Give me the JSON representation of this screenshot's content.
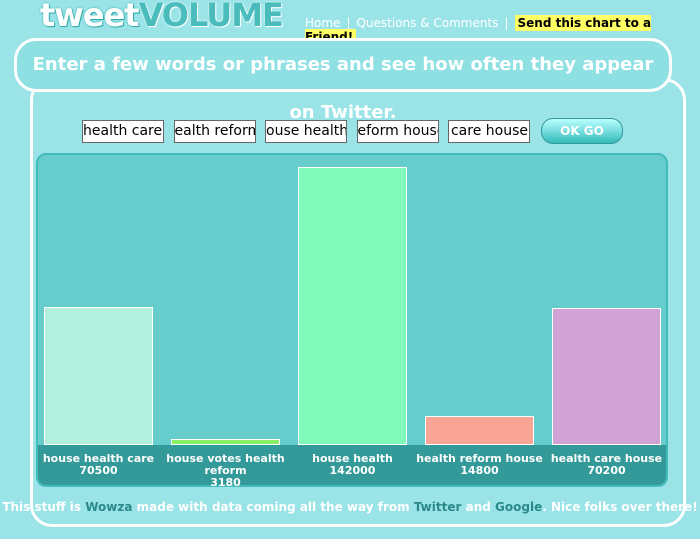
{
  "header": {
    "logo": [
      "tweet",
      "VOLUME"
    ],
    "nav": [
      "Home",
      "Questions & Comments",
      "Send this chart to a Friend!"
    ]
  },
  "banner": "Enter a few words or phrases and see how often they appear on Twitter.",
  "inputs": [
    "health care",
    "ealth reform",
    "ouse health",
    "eform house",
    "care house"
  ],
  "button": "OK GO",
  "chart_data": {
    "type": "bar",
    "categories": [
      "house health care",
      "house votes health reform",
      "house health",
      "health reform house",
      "health care house"
    ],
    "values": [
      70500,
      3180,
      142000,
      14800,
      70200
    ],
    "colors": [
      "#b2efdc",
      "#88ee66",
      "#80f9bb",
      "#f8a595",
      "#d0a2d6"
    ]
  },
  "footer": [
    "This stuff is",
    "Wowza",
    "made with data coming all the way from",
    "Twitter",
    "and",
    "Google",
    ". Nice folks over there!"
  ]
}
